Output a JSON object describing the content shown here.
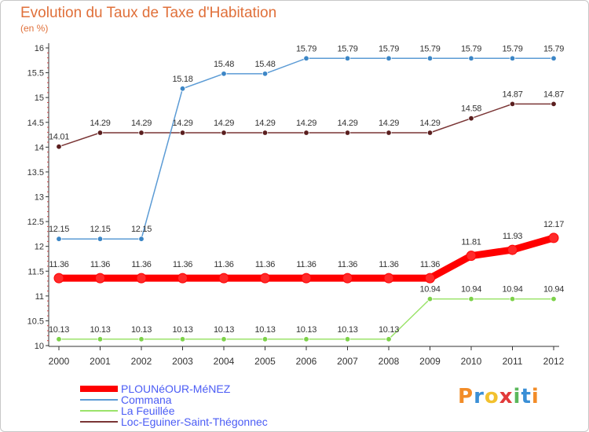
{
  "header": {
    "title": "Evolution du Taux de Taxe d'Habitation",
    "unit": "(en %)"
  },
  "logo": {
    "text": "Proxiti",
    "letters": [
      "P",
      "r",
      "o",
      "x",
      "i",
      "t",
      "i"
    ]
  },
  "legend": {
    "items": [
      {
        "label": "PLOUNéOUR-MéNEZ",
        "color": "#ff0000"
      },
      {
        "label": "Commana",
        "color": "#5b9bd5"
      },
      {
        "label": "La Feuillée",
        "color": "#9be36a"
      },
      {
        "label": "Loc-Eguiner-Saint-Thégonnec",
        "color": "#7a3535"
      }
    ]
  },
  "chart_data": {
    "type": "line",
    "x": [
      "2000",
      "2001",
      "2002",
      "2003",
      "2004",
      "2005",
      "2006",
      "2007",
      "2008",
      "2009",
      "2010",
      "2011",
      "2012"
    ],
    "ylim": [
      10,
      16
    ],
    "yticks": [
      "10",
      "10.5",
      "11",
      "11.5",
      "12",
      "12.5",
      "13",
      "13.5",
      "14",
      "14.5",
      "15",
      "15.5",
      "16"
    ],
    "grid": false,
    "legend_position": "bottom-left",
    "series": [
      {
        "name": "PLOUNéOUR-MéNEZ",
        "color": "#ff0000",
        "markerColor": "#ff2a2a",
        "values": [
          11.36,
          11.36,
          11.36,
          11.36,
          11.36,
          11.36,
          11.36,
          11.36,
          11.36,
          11.36,
          11.81,
          11.93,
          12.17
        ],
        "labels": [
          "11.36",
          "11.36",
          "11.36",
          "11.36",
          "11.36",
          "11.36",
          "11.36",
          "11.36",
          "11.36",
          "11.36",
          "11.81",
          "11.93",
          "12.17"
        ]
      },
      {
        "name": "Commana",
        "color": "#5b9bd5",
        "markerColor": "#3c86c6",
        "values": [
          12.15,
          12.15,
          12.15,
          15.18,
          15.48,
          15.48,
          15.79,
          15.79,
          15.79,
          15.79,
          15.79,
          15.79,
          15.79
        ],
        "labels": [
          "12.15",
          "12.15",
          "12.15",
          "15.18",
          "15.48",
          "15.48",
          "15.79",
          "15.79",
          "15.79",
          "15.79",
          "15.79",
          "15.79",
          "15.79"
        ]
      },
      {
        "name": "La Feuillée",
        "color": "#9be36a",
        "markerColor": "#7dd24a",
        "values": [
          10.13,
          10.13,
          10.13,
          10.13,
          10.13,
          10.13,
          10.13,
          10.13,
          10.13,
          10.94,
          10.94,
          10.94,
          10.94
        ],
        "labels": [
          "10.13",
          "10.13",
          "10.13",
          "10.13",
          "10.13",
          "10.13",
          "10.13",
          "10.13",
          "10.13",
          "10.94",
          "10.94",
          "10.94",
          "10.94"
        ]
      },
      {
        "name": "Loc-Eguiner-Saint-Thégonnec",
        "color": "#7a3535",
        "markerColor": "#5a1e1e",
        "values": [
          14.01,
          14.29,
          14.29,
          14.29,
          14.29,
          14.29,
          14.29,
          14.29,
          14.29,
          14.29,
          14.58,
          14.87,
          14.87
        ],
        "labels": [
          "14.01",
          "14.29",
          "14.29",
          "14.29",
          "14.29",
          "14.29",
          "14.29",
          "14.29",
          "14.29",
          "14.29",
          "14.58",
          "14.87",
          "14.87"
        ]
      }
    ]
  }
}
